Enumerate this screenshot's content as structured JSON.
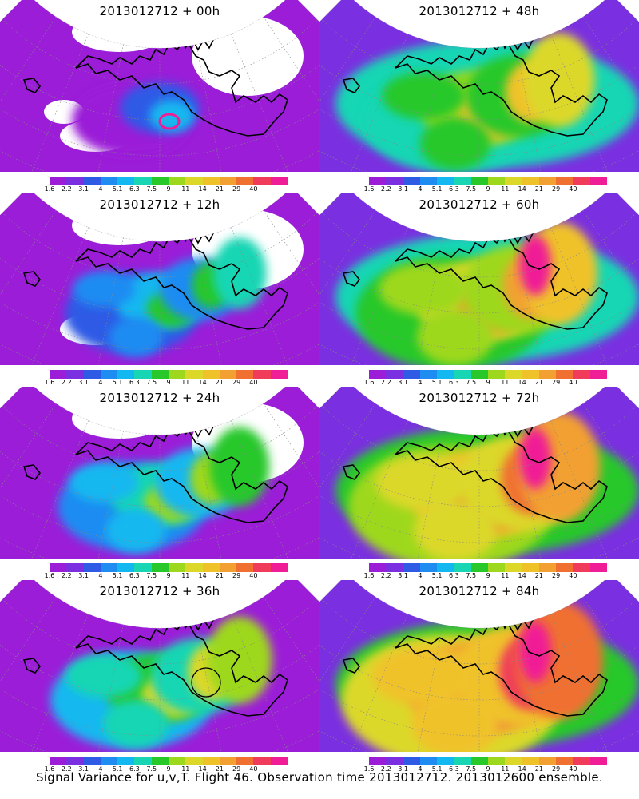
{
  "colorbar": {
    "labels": [
      "1.6",
      "2.2",
      "3.1",
      "4",
      "5.1",
      "6.3",
      "7.5",
      "9",
      "11",
      "14",
      "21",
      "29",
      "40"
    ],
    "colors": [
      "#9b1dd8",
      "#7a2fe0",
      "#2f5ae6",
      "#1f8cf2",
      "#14b8f0",
      "#18d6b4",
      "#28c82a",
      "#9ed81e",
      "#dcd82a",
      "#f0c22a",
      "#f2a032",
      "#f07032",
      "#f03c5a",
      "#f01e96"
    ]
  },
  "panels": [
    {
      "title": "2013012712 + 00h",
      "level": 0
    },
    {
      "title": "2013012712 + 48h",
      "level": 4
    },
    {
      "title": "2013012712 + 12h",
      "level": 1
    },
    {
      "title": "2013012712 + 60h",
      "level": 5
    },
    {
      "title": "2013012712 + 24h",
      "level": 2
    },
    {
      "title": "2013012712 + 72h",
      "level": 6
    },
    {
      "title": "2013012712 + 36h",
      "level": 3
    },
    {
      "title": "2013012712 + 84h",
      "level": 7
    }
  ],
  "caption": "Signal Variance for u,v,T. Flight 46. Observation time 2013012712. 2013012600 ensemble."
}
